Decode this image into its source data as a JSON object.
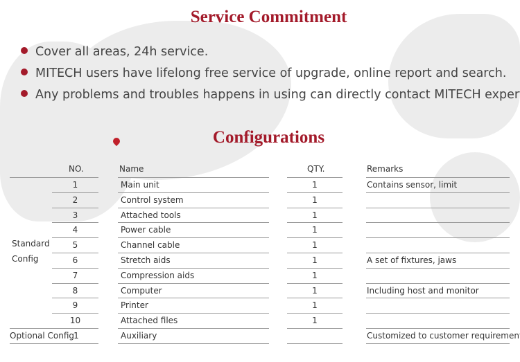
{
  "service": {
    "title": "Service Commitment",
    "bullets": [
      "Cover all areas, 24h service.",
      "MITECH users have lifelong free service of upgrade, online report and search.",
      "Any problems and troubles happens in using can directly contact MITECH expert."
    ]
  },
  "config": {
    "title": "Configurations",
    "headers": {
      "no": "NO.",
      "name": "Name",
      "qty": "QTY.",
      "remarks": "Remarks"
    },
    "groups": {
      "standard_line1": "Standard",
      "standard_line2": "Config",
      "optional": "Optional Config"
    },
    "rows": [
      {
        "no": "1",
        "name": "Main unit",
        "qty": "1",
        "remarks": "Contains sensor, limit"
      },
      {
        "no": "2",
        "name": "Control system",
        "qty": "1",
        "remarks": ""
      },
      {
        "no": "3",
        "name": "Attached tools",
        "qty": "1",
        "remarks": ""
      },
      {
        "no": "4",
        "name": "Power cable",
        "qty": "1",
        "remarks": ""
      },
      {
        "no": "5",
        "name": "Channel cable",
        "qty": "1",
        "remarks": ""
      },
      {
        "no": "6",
        "name": "Stretch aids",
        "qty": "1",
        "remarks": "A set of fixtures, jaws"
      },
      {
        "no": "7",
        "name": "Compression aids",
        "qty": "1",
        "remarks": ""
      },
      {
        "no": "8",
        "name": "Computer",
        "qty": "1",
        "remarks": "Including host and monitor"
      },
      {
        "no": "9",
        "name": "Printer",
        "qty": "1",
        "remarks": ""
      },
      {
        "no": "10",
        "name": "Attached files",
        "qty": "1",
        "remarks": ""
      },
      {
        "no": "1",
        "name": "Auxiliary",
        "qty": "",
        "remarks": "Customized to customer requirements"
      }
    ]
  },
  "colors": {
    "accent": "#a31a2a",
    "map": "#ececec"
  }
}
